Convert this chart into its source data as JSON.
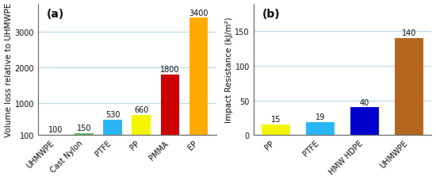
{
  "chart_a": {
    "categories": [
      "UHMWPE",
      "Cast Nylon",
      "PTFE",
      "PP",
      "PMMA",
      "EP"
    ],
    "values": [
      100,
      150,
      530,
      660,
      1800,
      3400
    ],
    "colors": [
      "#1a6faf",
      "#5cb85c",
      "#29b6f6",
      "#f5f500",
      "#cc0000",
      "#ffaa00"
    ],
    "ylabel": "Volume loss relative to UHMWPE",
    "label": "(a)",
    "ylim": [
      100,
      3800
    ],
    "yticks": [
      100,
      1000,
      2000,
      3000
    ],
    "bar_width": 0.65
  },
  "chart_b": {
    "categories": [
      "PP",
      "PTFE",
      "HMW HDPE",
      "UHMWPE"
    ],
    "values": [
      15,
      19,
      40,
      140
    ],
    "colors": [
      "#f5f500",
      "#29b6f6",
      "#0000cc",
      "#b5651d"
    ],
    "ylabel": "Impact Resistance (kJ/m²)",
    "label": "(b)",
    "ylim": [
      0,
      190
    ],
    "yticks": [
      0,
      50,
      100,
      150
    ],
    "bar_width": 0.65
  },
  "background_color": "#ffffff",
  "grid_color": "#add8e6",
  "label_fontsize": 7.5,
  "tick_fontsize": 7,
  "annotation_fontsize": 7,
  "label_bold_fontsize": 10
}
